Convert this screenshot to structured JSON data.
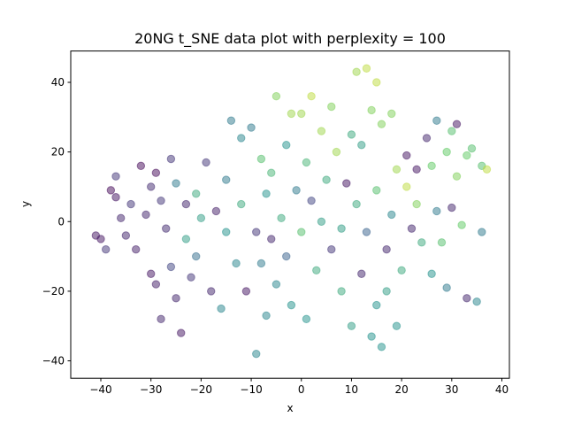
{
  "chart_data": {
    "type": "scatter",
    "title": "20NG t_SNE data plot with perplexity = 100",
    "xlabel": "x",
    "ylabel": "y",
    "xlim": [
      -46,
      41.5
    ],
    "ylim": [
      -45,
      49
    ],
    "xticks": [
      -40,
      -30,
      -20,
      -10,
      0,
      10,
      20,
      30,
      40
    ],
    "yticks": [
      -40,
      -20,
      0,
      20,
      40
    ],
    "colormap": "viridis",
    "alpha": 0.5,
    "grid": false,
    "points": [
      {
        "x": -41,
        "y": -4,
        "c": 0.05
      },
      {
        "x": -40,
        "y": -5,
        "c": 0.05
      },
      {
        "x": -39,
        "y": -8,
        "c": 0.15
      },
      {
        "x": -38,
        "y": 9,
        "c": 0.02
      },
      {
        "x": -37,
        "y": 7,
        "c": 0.05
      },
      {
        "x": -37,
        "y": 13,
        "c": 0.15
      },
      {
        "x": -36,
        "y": 1,
        "c": 0.1
      },
      {
        "x": -35,
        "y": -4,
        "c": 0.1
      },
      {
        "x": -34,
        "y": 5,
        "c": 0.15
      },
      {
        "x": -33,
        "y": -8,
        "c": 0.08
      },
      {
        "x": -32,
        "y": 16,
        "c": 0.02
      },
      {
        "x": -31,
        "y": 2,
        "c": 0.1
      },
      {
        "x": -30,
        "y": 10,
        "c": 0.12
      },
      {
        "x": -30,
        "y": -15,
        "c": 0.05
      },
      {
        "x": -29,
        "y": 14,
        "c": 0.02
      },
      {
        "x": -29,
        "y": -18,
        "c": 0.08
      },
      {
        "x": -28,
        "y": 6,
        "c": 0.15
      },
      {
        "x": -28,
        "y": -28,
        "c": 0.1
      },
      {
        "x": -27,
        "y": -2,
        "c": 0.12
      },
      {
        "x": -26,
        "y": -13,
        "c": 0.2
      },
      {
        "x": -26,
        "y": 18,
        "c": 0.15
      },
      {
        "x": -25,
        "y": -22,
        "c": 0.1
      },
      {
        "x": -25,
        "y": 11,
        "c": 0.4
      },
      {
        "x": -24,
        "y": -32,
        "c": 0.05
      },
      {
        "x": -23,
        "y": 5,
        "c": 0.1
      },
      {
        "x": -23,
        "y": -5,
        "c": 0.55
      },
      {
        "x": -22,
        "y": -16,
        "c": 0.15
      },
      {
        "x": -21,
        "y": 8,
        "c": 0.6
      },
      {
        "x": -21,
        "y": -10,
        "c": 0.35
      },
      {
        "x": -20,
        "y": 1,
        "c": 0.55
      },
      {
        "x": -19,
        "y": 17,
        "c": 0.15
      },
      {
        "x": -18,
        "y": -20,
        "c": 0.1
      },
      {
        "x": -17,
        "y": 3,
        "c": 0.08
      },
      {
        "x": -16,
        "y": -25,
        "c": 0.45
      },
      {
        "x": -15,
        "y": 12,
        "c": 0.4
      },
      {
        "x": -15,
        "y": -3,
        "c": 0.5
      },
      {
        "x": -14,
        "y": 29,
        "c": 0.4
      },
      {
        "x": -13,
        "y": -12,
        "c": 0.45
      },
      {
        "x": -12,
        "y": 24,
        "c": 0.45
      },
      {
        "x": -12,
        "y": 5,
        "c": 0.6
      },
      {
        "x": -11,
        "y": -20,
        "c": 0.05
      },
      {
        "x": -10,
        "y": 27,
        "c": 0.4
      },
      {
        "x": -9,
        "y": -3,
        "c": 0.15
      },
      {
        "x": -9,
        "y": -38,
        "c": 0.45
      },
      {
        "x": -8,
        "y": 18,
        "c": 0.7
      },
      {
        "x": -8,
        "y": -12,
        "c": 0.4
      },
      {
        "x": -7,
        "y": 8,
        "c": 0.5
      },
      {
        "x": -7,
        "y": -27,
        "c": 0.45
      },
      {
        "x": -6,
        "y": 14,
        "c": 0.65
      },
      {
        "x": -6,
        "y": -5,
        "c": 0.1
      },
      {
        "x": -5,
        "y": 36,
        "c": 0.8
      },
      {
        "x": -5,
        "y": -18,
        "c": 0.45
      },
      {
        "x": -4,
        "y": 1,
        "c": 0.6
      },
      {
        "x": -3,
        "y": 22,
        "c": 0.5
      },
      {
        "x": -3,
        "y": -10,
        "c": 0.3
      },
      {
        "x": -2,
        "y": 31,
        "c": 0.85
      },
      {
        "x": -2,
        "y": -24,
        "c": 0.5
      },
      {
        "x": -1,
        "y": 9,
        "c": 0.4
      },
      {
        "x": 0,
        "y": 31,
        "c": 0.85
      },
      {
        "x": 0,
        "y": -3,
        "c": 0.7
      },
      {
        "x": 1,
        "y": 17,
        "c": 0.65
      },
      {
        "x": 1,
        "y": -28,
        "c": 0.5
      },
      {
        "x": 2,
        "y": 36,
        "c": 0.9
      },
      {
        "x": 2,
        "y": 6,
        "c": 0.2
      },
      {
        "x": 3,
        "y": -14,
        "c": 0.6
      },
      {
        "x": 4,
        "y": 26,
        "c": 0.85
      },
      {
        "x": 4,
        "y": 0,
        "c": 0.55
      },
      {
        "x": 5,
        "y": 12,
        "c": 0.6
      },
      {
        "x": 6,
        "y": -8,
        "c": 0.15
      },
      {
        "x": 6,
        "y": 33,
        "c": 0.8
      },
      {
        "x": 7,
        "y": 20,
        "c": 0.85
      },
      {
        "x": 8,
        "y": -2,
        "c": 0.55
      },
      {
        "x": 8,
        "y": -20,
        "c": 0.6
      },
      {
        "x": 9,
        "y": 11,
        "c": 0.05
      },
      {
        "x": 10,
        "y": 25,
        "c": 0.6
      },
      {
        "x": 10,
        "y": -30,
        "c": 0.55
      },
      {
        "x": 11,
        "y": 43,
        "c": 0.85
      },
      {
        "x": 11,
        "y": 5,
        "c": 0.6
      },
      {
        "x": 12,
        "y": -15,
        "c": 0.1
      },
      {
        "x": 12,
        "y": 22,
        "c": 0.55
      },
      {
        "x": 13,
        "y": 44,
        "c": 0.9
      },
      {
        "x": 13,
        "y": -3,
        "c": 0.3
      },
      {
        "x": 14,
        "y": -33,
        "c": 0.5
      },
      {
        "x": 14,
        "y": 32,
        "c": 0.8
      },
      {
        "x": 15,
        "y": 40,
        "c": 0.9
      },
      {
        "x": 15,
        "y": -24,
        "c": 0.5
      },
      {
        "x": 15,
        "y": 9,
        "c": 0.7
      },
      {
        "x": 16,
        "y": -36,
        "c": 0.5
      },
      {
        "x": 16,
        "y": 28,
        "c": 0.8
      },
      {
        "x": 17,
        "y": -8,
        "c": 0.1
      },
      {
        "x": 17,
        "y": -20,
        "c": 0.55
      },
      {
        "x": 18,
        "y": 31,
        "c": 0.8
      },
      {
        "x": 18,
        "y": 2,
        "c": 0.45
      },
      {
        "x": 19,
        "y": 15,
        "c": 0.85
      },
      {
        "x": 19,
        "y": -30,
        "c": 0.5
      },
      {
        "x": 20,
        "y": -14,
        "c": 0.6
      },
      {
        "x": 21,
        "y": 19,
        "c": 0.05
      },
      {
        "x": 21,
        "y": 10,
        "c": 0.9
      },
      {
        "x": 22,
        "y": -2,
        "c": 0.1
      },
      {
        "x": 23,
        "y": 15,
        "c": 0.05
      },
      {
        "x": 23,
        "y": 5,
        "c": 0.8
      },
      {
        "x": 24,
        "y": -6,
        "c": 0.6
      },
      {
        "x": 25,
        "y": 24,
        "c": 0.1
      },
      {
        "x": 26,
        "y": 16,
        "c": 0.75
      },
      {
        "x": 26,
        "y": -15,
        "c": 0.5
      },
      {
        "x": 27,
        "y": 29,
        "c": 0.4
      },
      {
        "x": 27,
        "y": 3,
        "c": 0.4
      },
      {
        "x": 28,
        "y": -6,
        "c": 0.7
      },
      {
        "x": 29,
        "y": 20,
        "c": 0.75
      },
      {
        "x": 29,
        "y": -19,
        "c": 0.4
      },
      {
        "x": 30,
        "y": 26,
        "c": 0.7
      },
      {
        "x": 30,
        "y": 4,
        "c": 0.1
      },
      {
        "x": 31,
        "y": 28,
        "c": 0.05
      },
      {
        "x": 31,
        "y": 13,
        "c": 0.8
      },
      {
        "x": 32,
        "y": -1,
        "c": 0.75
      },
      {
        "x": 33,
        "y": 19,
        "c": 0.75
      },
      {
        "x": 34,
        "y": 21,
        "c": 0.7
      },
      {
        "x": 35,
        "y": -23,
        "c": 0.45
      },
      {
        "x": 36,
        "y": 16,
        "c": 0.7
      },
      {
        "x": 37,
        "y": 15,
        "c": 0.9
      },
      {
        "x": 36,
        "y": -3,
        "c": 0.4
      },
      {
        "x": 33,
        "y": -22,
        "c": 0.1
      }
    ]
  }
}
